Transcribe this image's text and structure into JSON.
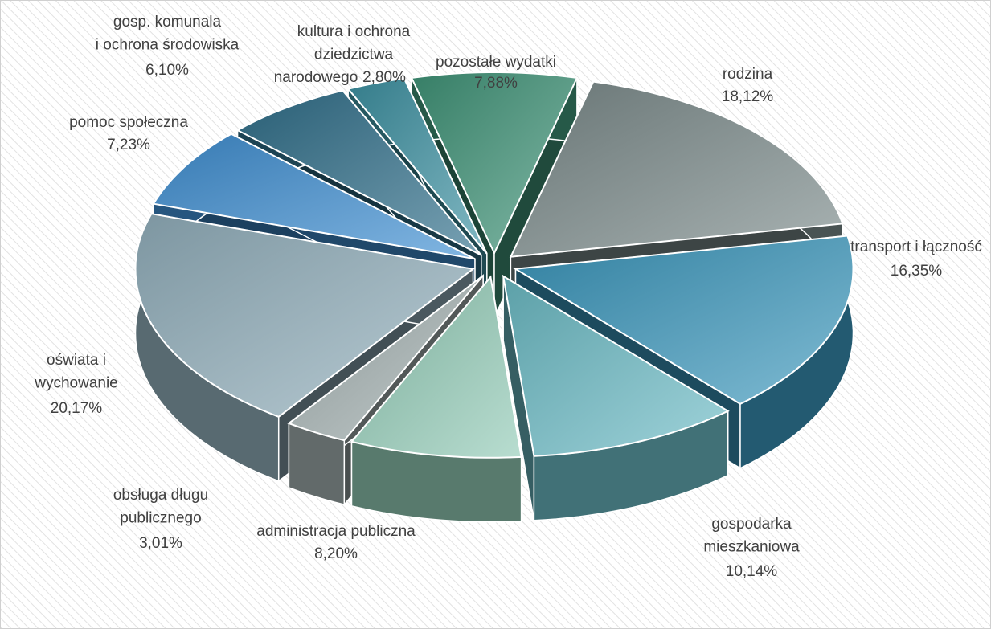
{
  "chart_data": {
    "type": "pie3d",
    "categories": [
      "pozostałe wydatki",
      "rodzina",
      "transport i łączność",
      "gospodarka\nmieszkaniowa",
      "administracja publiczna",
      "obsługa długu\npublicznego",
      "oświata i\nwychowanie",
      "pomoc społeczna",
      "gosp. komunala\ni ochrona środowiska",
      "kultura  i ochrona\ndziedzictwa\nnarodowego"
    ],
    "values": [
      7.88,
      18.12,
      16.35,
      10.14,
      8.2,
      3.01,
      20.17,
      7.23,
      6.1,
      2.8
    ],
    "value_labels": [
      "7,88%",
      "18,12%",
      "16,35%",
      "10,14%",
      "8,20%",
      "3,01%",
      "20,17%",
      "7,23%",
      "6,10%",
      "2,80%"
    ],
    "colors": [
      "#3f9478",
      "#7a8a8a",
      "#3a96bc",
      "#6cbcc6",
      "#92cbb6",
      "#a3b0b0",
      "#93b0bd",
      "#3f8fd3",
      "#2f6f8a",
      "#3d92a2"
    ]
  }
}
